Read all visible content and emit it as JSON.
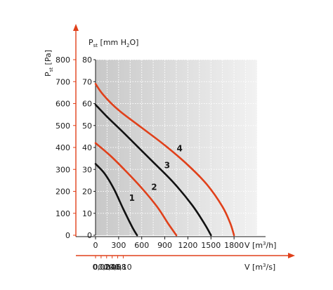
{
  "chart_data": {
    "type": "line",
    "axes": {
      "y_primary": {
        "title_main": "P",
        "title_sub": "st",
        "title_rest": " [Pa]",
        "range": [
          0,
          800
        ],
        "ticks": [
          "0",
          "100",
          "200",
          "300",
          "400",
          "500",
          "600",
          "700",
          "800"
        ]
      },
      "y_secondary": {
        "title_main": "P",
        "title_sub": "st",
        "title_rest": " [mm H",
        "title_sub2": "2",
        "title_end": "O]",
        "range": [
          0,
          80
        ],
        "ticks": [
          "0",
          "10",
          "20",
          "30",
          "40",
          "50",
          "60",
          "70",
          "80"
        ]
      },
      "x_primary": {
        "label_main": "V [m",
        "label_sup": "3",
        "label_end": "/h]",
        "range": [
          0,
          2100
        ],
        "ticks": [
          "0",
          "300",
          "600",
          "900",
          "1200",
          "1500",
          "1800"
        ]
      },
      "x_secondary": {
        "label_main": "V [m",
        "label_sup": "3",
        "label_end": "/s]",
        "ticks": [
          "0",
          "0,02",
          "0,04",
          "0,06",
          "0,08",
          "0,10"
        ],
        "tick_values_m3h": [
          0,
          72,
          144,
          216,
          288,
          360
        ]
      }
    },
    "grid": true,
    "colors": {
      "red": "#e0401a",
      "black": "#111111",
      "plot_bg": "#dcdcdc",
      "arrow": "#e0401a"
    },
    "series": [
      {
        "name": "1",
        "color": "#111111",
        "x": [
          0,
          120,
          240,
          360,
          480,
          540
        ],
        "y": [
          325,
          280,
          210,
          120,
          35,
          0
        ]
      },
      {
        "name": "2",
        "color": "#e0401a",
        "x": [
          0,
          200,
          400,
          600,
          800,
          950,
          1050
        ],
        "y": [
          420,
          360,
          290,
          215,
          130,
          50,
          0
        ]
      },
      {
        "name": "3",
        "color": "#111111",
        "x": [
          0,
          150,
          400,
          700,
          1000,
          1250,
          1420,
          1500
        ],
        "y": [
          595,
          540,
          455,
          350,
          245,
          140,
          50,
          0
        ]
      },
      {
        "name": "4",
        "color": "#e0401a",
        "x": [
          0,
          100,
          300,
          600,
          900,
          1200,
          1450,
          1650,
          1750,
          1800
        ],
        "y": [
          690,
          640,
          570,
          490,
          410,
          320,
          230,
          130,
          55,
          0
        ]
      }
    ]
  }
}
